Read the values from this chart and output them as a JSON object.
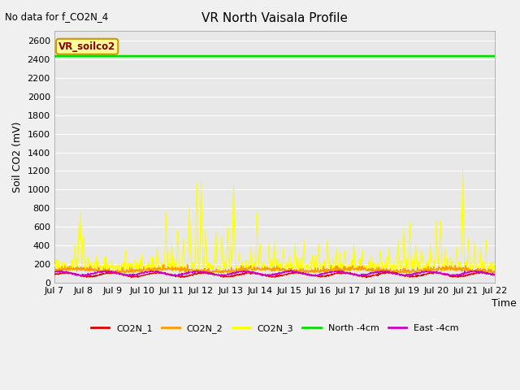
{
  "title": "VR North Vaisala Profile",
  "no_data_text": "No data for f_CO2N_4",
  "ylabel": "Soil CO2 (mV)",
  "xlabel": "Time",
  "annotation_text": "VR_soilco2",
  "ylim": [
    0,
    2700
  ],
  "yticks": [
    0,
    200,
    400,
    600,
    800,
    1000,
    1200,
    1400,
    1600,
    1800,
    2000,
    2200,
    2400,
    2600
  ],
  "x_start": 7,
  "x_end": 22,
  "north_4cm_value": 2430,
  "plot_bg_color": "#e8e8e8",
  "fig_bg_color": "#f0f0f0",
  "co2n1_color": "#dd0000",
  "co2n2_color": "#ff9900",
  "co2n3_color": "#ffff00",
  "north_4cm_color": "#00dd00",
  "east_4cm_color": "#cc00cc",
  "annotation_bg": "#ffff99",
  "annotation_border": "#cc9900",
  "annotation_text_color": "#880000",
  "legend_items": [
    "CO2N_1",
    "CO2N_2",
    "CO2N_3",
    "North -4cm",
    "East -4cm"
  ],
  "legend_colors": [
    "#dd0000",
    "#ff9900",
    "#ffff00",
    "#00dd00",
    "#cc00cc"
  ],
  "x_tick_labels": [
    "Jul 7",
    "Jul 8",
    "Jul 9",
    "Jul 10",
    "Jul 11",
    "Jul 12",
    "Jul 13",
    "Jul 14",
    "Jul 15",
    "Jul 16",
    "Jul 17",
    "Jul 18",
    "Jul 19",
    "Jul 20",
    "Jul 21",
    "Jul 22"
  ],
  "x_tick_positions": [
    7,
    8,
    9,
    10,
    11,
    12,
    13,
    14,
    15,
    16,
    17,
    18,
    19,
    20,
    21,
    22
  ]
}
